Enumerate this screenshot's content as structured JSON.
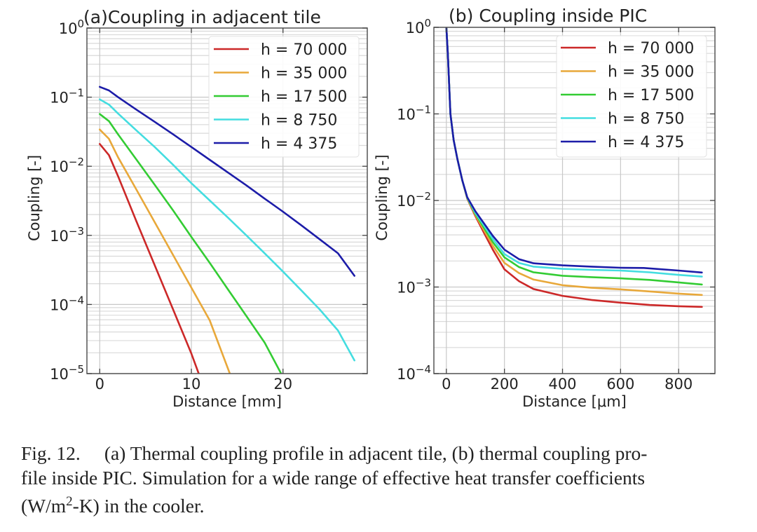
{
  "chart_data": [
    {
      "type": "line",
      "id": "a",
      "title": "(a)Coupling in adjacent tile",
      "xlabel": "Distance [mm]",
      "ylabel": "Coupling [-]",
      "xscale": "linear",
      "yscale": "log",
      "xlim": [
        -1.4,
        29.2
      ],
      "ylim": [
        1e-05,
        1
      ],
      "xticks": [
        0,
        10,
        20
      ],
      "xtick_labels": [
        "0",
        "10",
        "20"
      ],
      "yticks": [
        1,
        0.1,
        0.01,
        0.001,
        0.0001,
        1e-05
      ],
      "ytick_labels": [
        {
          "base": "10",
          "exp": "0"
        },
        {
          "base": "10",
          "exp": "−1"
        },
        {
          "base": "10",
          "exp": "−2"
        },
        {
          "base": "10",
          "exp": "−3"
        },
        {
          "base": "10",
          "exp": "−4"
        },
        {
          "base": "10",
          "exp": "−5"
        }
      ],
      "grid": true,
      "legend_position": "top-right",
      "series": [
        {
          "name": "h = 70 000",
          "color": "#cc2828",
          "x": [
            0,
            1,
            2,
            4,
            6,
            8,
            10,
            10.8
          ],
          "y": [
            0.021,
            0.0145,
            0.0072,
            0.0016,
            0.00037,
            8.5e-05,
            1.95e-05,
            1e-05
          ]
        },
        {
          "name": "h = 35 000",
          "color": "#e8a83a",
          "x": [
            0,
            1,
            2,
            4,
            6,
            8,
            10,
            12,
            14.2
          ],
          "y": [
            0.034,
            0.025,
            0.0135,
            0.0046,
            0.00155,
            0.00052,
            0.000175,
            5.9e-05,
            1e-05
          ]
        },
        {
          "name": "h = 17 500",
          "color": "#33cc33",
          "x": [
            0,
            1,
            2,
            4,
            6,
            8,
            10,
            12,
            14,
            16,
            18,
            19.8
          ],
          "y": [
            0.057,
            0.045,
            0.029,
            0.0125,
            0.0054,
            0.0023,
            0.00095,
            0.0004,
            0.000165,
            6.8e-05,
            2.8e-05,
            1e-05
          ]
        },
        {
          "name": "h = 8 750",
          "color": "#44dde0",
          "x": [
            0,
            1,
            2,
            4,
            6,
            8,
            10,
            12,
            14,
            16,
            18,
            20,
            22,
            24,
            26,
            27.8
          ],
          "y": [
            0.093,
            0.078,
            0.058,
            0.033,
            0.019,
            0.0105,
            0.0057,
            0.0032,
            0.0018,
            0.001,
            0.00055,
            0.0003,
            0.00016,
            8.5e-05,
            4.2e-05,
            1.55e-05
          ]
        },
        {
          "name": "h = 4 375",
          "color": "#1c1ca8",
          "x": [
            0,
            1,
            2,
            4,
            6,
            8,
            10,
            12,
            14,
            16,
            18,
            20,
            22,
            24,
            26,
            27.8
          ],
          "y": [
            0.141,
            0.125,
            0.1,
            0.066,
            0.044,
            0.029,
            0.019,
            0.0124,
            0.0081,
            0.0053,
            0.0034,
            0.0022,
            0.0014,
            0.00088,
            0.00055,
            0.00026
          ]
        }
      ]
    },
    {
      "type": "line",
      "id": "b",
      "title": "(b) Coupling inside PIC",
      "xlabel": "Distance [μm]",
      "ylabel": "Coupling [-]",
      "xscale": "linear",
      "yscale": "log",
      "xlim": [
        -43,
        925
      ],
      "ylim": [
        0.0001,
        1
      ],
      "xticks": [
        0,
        200,
        400,
        600,
        800
      ],
      "xtick_labels": [
        "0",
        "200",
        "400",
        "600",
        "800"
      ],
      "yticks": [
        1,
        0.1,
        0.01,
        0.001,
        0.0001
      ],
      "ytick_labels": [
        {
          "base": "10",
          "exp": "0"
        },
        {
          "base": "10",
          "exp": "−1"
        },
        {
          "base": "10",
          "exp": "−2"
        },
        {
          "base": "10",
          "exp": "−3"
        },
        {
          "base": "10",
          "exp": "−4"
        }
      ],
      "grid": true,
      "legend_position": "top-right",
      "series": [
        {
          "name": "h = 70 000",
          "color": "#cc2828",
          "x": [
            0,
            5,
            14,
            25,
            38,
            55,
            72,
            100,
            130,
            160,
            200,
            250,
            300,
            400,
            500,
            600,
            700,
            800,
            880
          ],
          "y": [
            1.0,
            0.5,
            0.1,
            0.05,
            0.03,
            0.017,
            0.0105,
            0.0066,
            0.0042,
            0.0027,
            0.0016,
            0.00117,
            0.00095,
            0.00079,
            0.00071,
            0.00066,
            0.00062,
            0.0006,
            0.00059
          ]
        },
        {
          "name": "h = 35 000",
          "color": "#e8a83a",
          "x": [
            0,
            5,
            14,
            25,
            38,
            55,
            72,
            100,
            130,
            160,
            200,
            250,
            300,
            400,
            500,
            600,
            700,
            800,
            880
          ],
          "y": [
            1.0,
            0.5,
            0.1,
            0.05,
            0.03,
            0.017,
            0.0106,
            0.0068,
            0.0045,
            0.003,
            0.0019,
            0.00145,
            0.00122,
            0.00105,
            0.00098,
            0.00094,
            0.00089,
            0.00084,
            0.00081
          ]
        },
        {
          "name": "h = 17 500",
          "color": "#33cc33",
          "x": [
            0,
            5,
            14,
            25,
            38,
            55,
            72,
            100,
            130,
            160,
            200,
            250,
            300,
            400,
            500,
            600,
            700,
            800,
            880
          ],
          "y": [
            1.0,
            0.5,
            0.1,
            0.05,
            0.03,
            0.017,
            0.0107,
            0.007,
            0.0048,
            0.0033,
            0.0022,
            0.0017,
            0.00148,
            0.00135,
            0.0013,
            0.00126,
            0.00121,
            0.00113,
            0.00107
          ]
        },
        {
          "name": "h = 8 750",
          "color": "#44dde0",
          "x": [
            0,
            5,
            14,
            25,
            38,
            55,
            72,
            100,
            130,
            160,
            200,
            250,
            300,
            400,
            500,
            600,
            700,
            800,
            880
          ],
          "y": [
            1.0,
            0.5,
            0.1,
            0.05,
            0.03,
            0.017,
            0.0108,
            0.0072,
            0.0051,
            0.0036,
            0.0024,
            0.0019,
            0.00172,
            0.00162,
            0.00158,
            0.00155,
            0.00148,
            0.00138,
            0.00132
          ]
        },
        {
          "name": "h = 4 375",
          "color": "#1c1ca8",
          "x": [
            0,
            5,
            14,
            25,
            38,
            55,
            72,
            100,
            130,
            160,
            200,
            250,
            300,
            400,
            500,
            600,
            680,
            800,
            880
          ],
          "y": [
            1.0,
            0.5,
            0.1,
            0.05,
            0.03,
            0.017,
            0.0109,
            0.0075,
            0.0054,
            0.0039,
            0.0027,
            0.0021,
            0.00188,
            0.00178,
            0.00172,
            0.00167,
            0.00166,
            0.00155,
            0.00147
          ]
        }
      ]
    }
  ],
  "caption": {
    "fig_no": "Fig. 12.",
    "line1": "(a) Thermal coupling profile in adjacent tile, (b) thermal coupling pro-",
    "line2": "file inside PIC. Simulation for a wide range of effective heat transfer coefficients",
    "line3_pre": "(W/m",
    "line3_sup": "2",
    "line3_post": "-K) in the cooler."
  }
}
